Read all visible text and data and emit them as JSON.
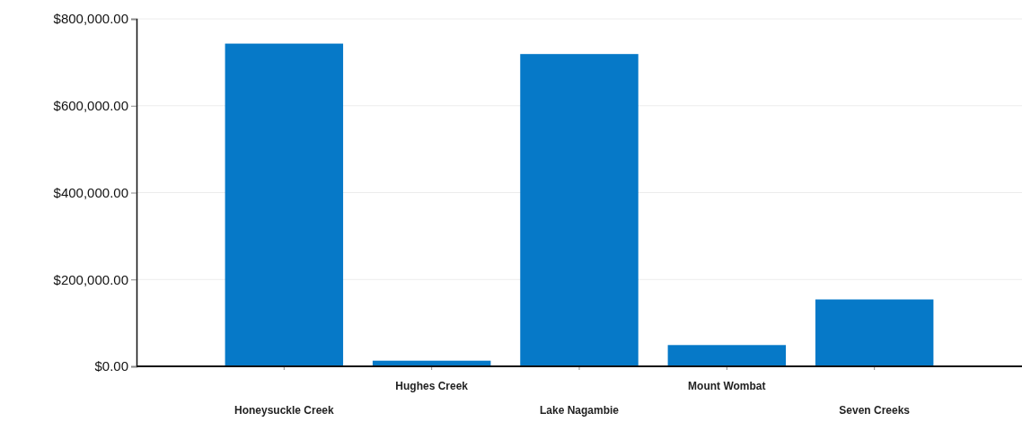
{
  "chart_data": {
    "type": "bar",
    "categories": [
      "Honeysuckle Creek",
      "Hughes Creek",
      "Lake Nagambie",
      "Mount Wombat",
      "Seven Creeks"
    ],
    "values": [
      743000,
      13000,
      719000,
      49000,
      154000
    ],
    "color": "#0679c8",
    "ylim": [
      0,
      800000
    ],
    "yticks": [
      {
        "value": 0,
        "label": "$0.00"
      },
      {
        "value": 200000,
        "label": "$200,000.00"
      },
      {
        "value": 400000,
        "label": "$400,000.00"
      },
      {
        "value": 600000,
        "label": "$600,000.00"
      },
      {
        "value": 800000,
        "label": "$800,000.00"
      }
    ],
    "grid": "y"
  }
}
